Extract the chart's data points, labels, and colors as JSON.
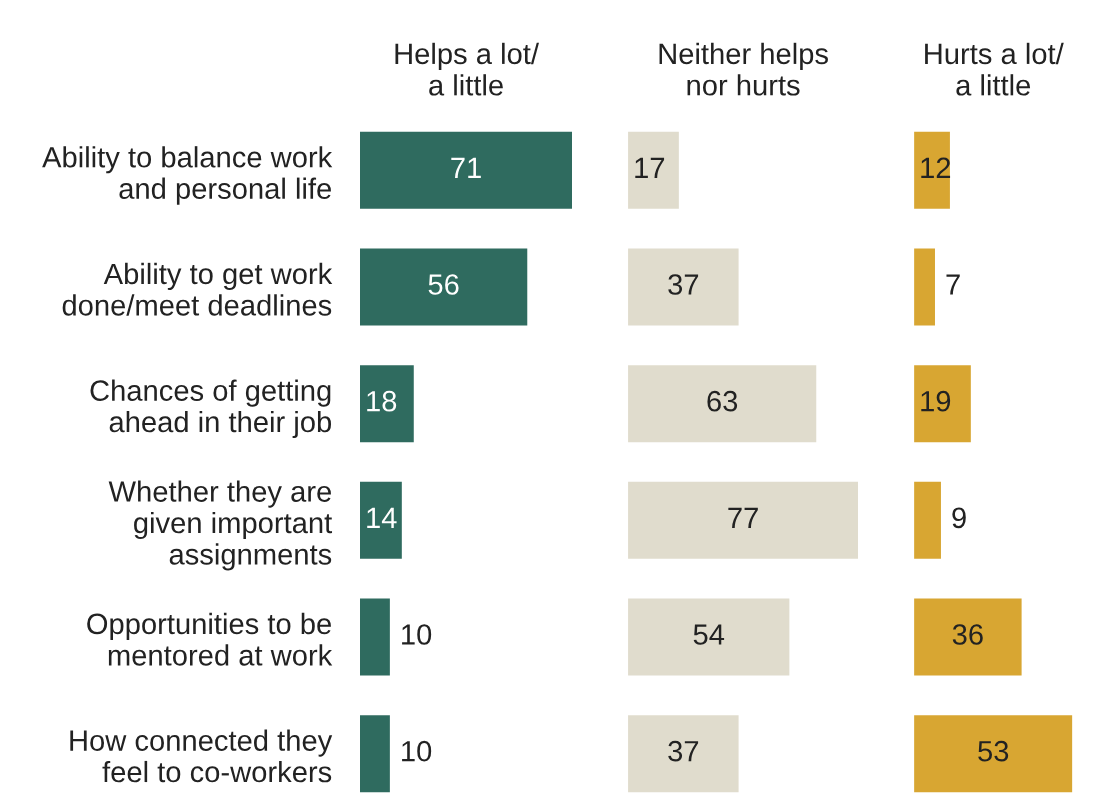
{
  "chart_data": [
    {
      "type": "bar",
      "orientation": "horizontal",
      "title": "Helps a lot/\na little",
      "categories": [
        "Ability to balance work\nand personal life",
        "Ability to get work\ndone/meet deadlines",
        "Chances of getting\nahead in their job",
        "Whether they are\ngiven important\nassignments",
        "Opportunities to be\nmentored at work",
        "How connected they\nfeel to co-workers"
      ],
      "values": [
        71,
        56,
        18,
        14,
        10,
        10
      ],
      "color": "#2f6b5f",
      "data_labels": true,
      "tick_labels": "y"
    },
    {
      "type": "bar",
      "orientation": "horizontal",
      "title": "Neither helps\nnor hurts",
      "categories": [
        null,
        null,
        null,
        null,
        null,
        null
      ],
      "values": [
        17,
        37,
        63,
        77,
        54,
        37
      ],
      "color": "#e0dccd",
      "data_labels": true,
      "tick_labels": false
    },
    {
      "type": "bar",
      "orientation": "horizontal",
      "title": "Hurts a lot/\na little",
      "categories": [
        null,
        null,
        null,
        null,
        null,
        null
      ],
      "values": [
        12,
        7,
        19,
        9,
        36,
        53
      ],
      "color": "#d8a632",
      "data_labels": true,
      "tick_labels": false
    }
  ]
}
